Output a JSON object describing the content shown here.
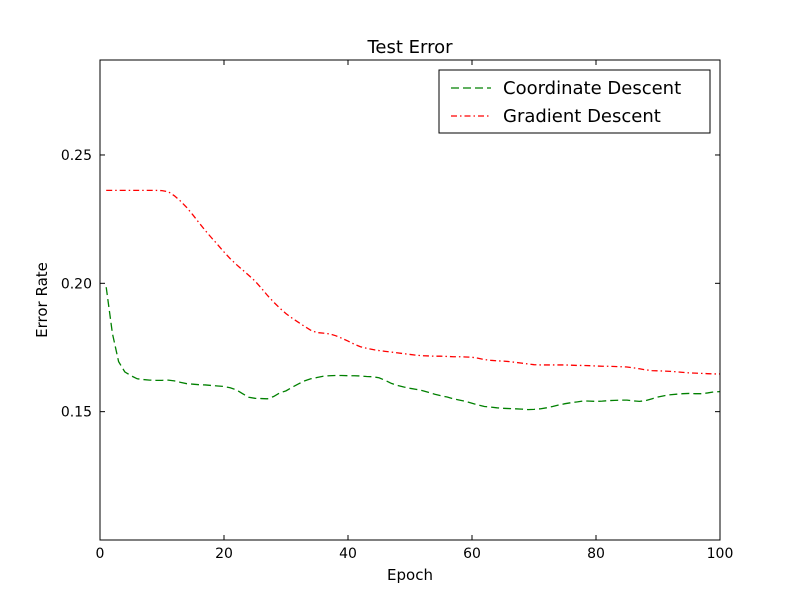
{
  "chart_data": {
    "type": "line",
    "title": "Test Error",
    "xlabel": "Epoch",
    "ylabel": "Error Rate",
    "xlim": [
      0,
      100
    ],
    "ylim": [
      0.1,
      0.287
    ],
    "xticks": [
      0,
      20,
      40,
      60,
      80,
      100
    ],
    "xtick_labels": [
      "0",
      "20",
      "40",
      "60",
      "80",
      "100"
    ],
    "yticks": [
      0.15,
      0.2,
      0.25
    ],
    "ytick_labels": [
      "0.15",
      "0.20",
      "0.25"
    ],
    "grid": false,
    "legend_position": "top-right",
    "x": [
      1,
      2,
      3,
      4,
      5,
      6,
      7,
      8,
      9,
      10,
      11,
      12,
      13,
      14,
      15,
      16,
      17,
      18,
      19,
      20,
      21,
      22,
      23,
      24,
      25,
      26,
      27,
      28,
      29,
      30,
      31,
      32,
      33,
      34,
      35,
      36,
      37,
      38,
      39,
      40,
      41,
      42,
      43,
      44,
      45,
      46,
      47,
      48,
      49,
      50,
      51,
      52,
      53,
      54,
      55,
      56,
      57,
      58,
      59,
      60,
      61,
      62,
      63,
      64,
      65,
      66,
      67,
      68,
      69,
      70,
      71,
      72,
      73,
      74,
      75,
      76,
      77,
      78,
      79,
      80,
      81,
      82,
      83,
      84,
      85,
      86,
      87,
      88,
      89,
      90,
      91,
      92,
      93,
      94,
      95,
      96,
      97,
      98,
      99,
      100
    ],
    "series": [
      {
        "name": "Coordinate Descent",
        "color": "#008000",
        "dash": "dashed",
        "values": [
          0.1985,
          0.1805,
          0.1695,
          0.1655,
          0.164,
          0.1628,
          0.1625,
          0.1623,
          0.1622,
          0.1622,
          0.1623,
          0.162,
          0.1614,
          0.1609,
          0.1607,
          0.1605,
          0.1604,
          0.1602,
          0.16,
          0.1598,
          0.1593,
          0.1585,
          0.157,
          0.1556,
          0.1552,
          0.1551,
          0.155,
          0.1559,
          0.1573,
          0.1581,
          0.1595,
          0.1608,
          0.162,
          0.1628,
          0.1633,
          0.1638,
          0.164,
          0.1641,
          0.1641,
          0.164,
          0.164,
          0.1639,
          0.1637,
          0.1636,
          0.1632,
          0.1622,
          0.161,
          0.1602,
          0.1596,
          0.1591,
          0.1587,
          0.1582,
          0.1575,
          0.1568,
          0.1562,
          0.1557,
          0.155,
          0.1545,
          0.154,
          0.1533,
          0.1526,
          0.152,
          0.1518,
          0.1515,
          0.1513,
          0.1512,
          0.1511,
          0.151,
          0.1508,
          0.1509,
          0.1511,
          0.1515,
          0.152,
          0.1526,
          0.1531,
          0.1535,
          0.1538,
          0.1542,
          0.1541,
          0.154,
          0.1541,
          0.1543,
          0.1544,
          0.1545,
          0.1545,
          0.1542,
          0.154,
          0.1543,
          0.155,
          0.1557,
          0.1562,
          0.1566,
          0.1568,
          0.157,
          0.1571,
          0.157,
          0.157,
          0.1573,
          0.1577,
          0.1578
        ]
      },
      {
        "name": "Gradient Descent",
        "color": "#ff0000",
        "dash": "dashdot",
        "values": [
          0.2362,
          0.2362,
          0.2362,
          0.2362,
          0.2362,
          0.2362,
          0.2362,
          0.2362,
          0.2362,
          0.2361,
          0.2357,
          0.2341,
          0.232,
          0.2295,
          0.2266,
          0.2235,
          0.2205,
          0.2177,
          0.215,
          0.2122,
          0.2096,
          0.2073,
          0.2052,
          0.2031,
          0.2009,
          0.1982,
          0.1953,
          0.1927,
          0.1903,
          0.1882,
          0.1864,
          0.1848,
          0.1832,
          0.1817,
          0.1808,
          0.1806,
          0.1803,
          0.1796,
          0.1786,
          0.1775,
          0.1763,
          0.1753,
          0.1747,
          0.1742,
          0.1738,
          0.1735,
          0.1732,
          0.1729,
          0.1726,
          0.1723,
          0.172,
          0.1718,
          0.1717,
          0.1716,
          0.1716,
          0.1715,
          0.1714,
          0.1714,
          0.1713,
          0.1712,
          0.1708,
          0.1703,
          0.17,
          0.1698,
          0.1697,
          0.1695,
          0.1692,
          0.1689,
          0.1686,
          0.1683,
          0.1682,
          0.1682,
          0.1682,
          0.1682,
          0.1682,
          0.1681,
          0.168,
          0.168,
          0.1679,
          0.1678,
          0.1677,
          0.1677,
          0.1676,
          0.1675,
          0.1674,
          0.1671,
          0.1667,
          0.1663,
          0.166,
          0.1659,
          0.1658,
          0.1657,
          0.1655,
          0.1653,
          0.1651,
          0.165,
          0.1649,
          0.1648,
          0.1647,
          0.1647
        ]
      }
    ]
  }
}
